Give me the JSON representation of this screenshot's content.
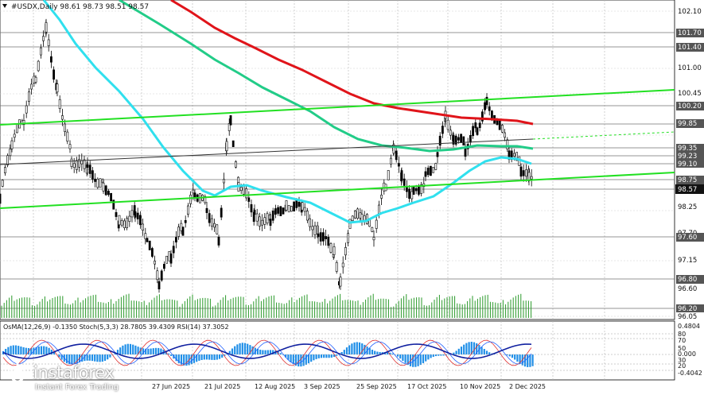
{
  "header": {
    "symbol_line": "#USDX,Daily  98.61 98.73 98.51 98.57"
  },
  "price_axis": {
    "levels": [
      "102.10",
      "101.70",
      "101.40",
      "101.00",
      "100.45",
      "100.20",
      "99.85",
      "99.35",
      "99.23",
      "99.10",
      "98.75",
      "98.57",
      "98.25",
      "97.70",
      "97.60",
      "97.15",
      "96.80",
      "96.60",
      "96.20",
      "96.05"
    ],
    "current_price": "98.57"
  },
  "date_axis": {
    "labels": [
      "27 Jun 2025",
      "21 Jul 2025",
      "12 Aug 2025",
      "3 Sep 2025",
      "25 Sep 2025",
      "17 Oct 2025",
      "10 Nov 2025",
      "2 Dec 2025"
    ]
  },
  "indicator": {
    "title": "OsMA(12,26,9) -0.1350  Stoch(5,3,3) 28.7805 39.4309  RSI(14) 37.3052",
    "axis": [
      "0.4804",
      "80",
      "70",
      "50",
      "0.000",
      "30",
      "20",
      "-0.4042"
    ]
  },
  "logo": {
    "brand": "instaforex",
    "tagline": "Instant Forex Trading"
  },
  "colors": {
    "ma_red": "#e0141a",
    "ma_green": "#22cc88",
    "ma_cyan": "#30e0ee",
    "trend_green": "#22e022",
    "candle": "#000000",
    "histogram": "#1f8fe8"
  }
}
